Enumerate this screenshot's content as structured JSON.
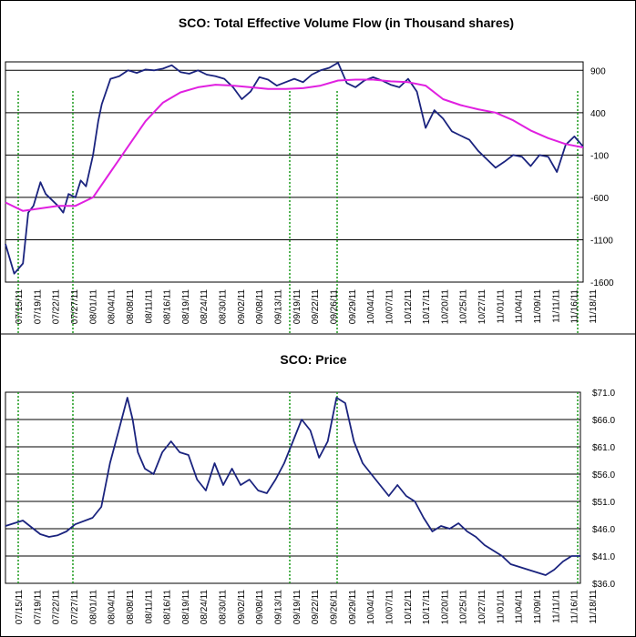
{
  "chart_data": [
    {
      "type": "line",
      "title": "SCO: Total Effective Volume Flow (in Thousand shares)",
      "xlabel": "",
      "ylabel": "",
      "ylim": [
        -1600,
        1000
      ],
      "yticks": [
        900,
        400,
        -100,
        -600,
        -1100,
        -1600
      ],
      "grid": "horizontal",
      "legend": "none",
      "x_tick_labels": [
        "07/15/11",
        "07/19/11",
        "07/22/11",
        "07/27/11",
        "08/01/11",
        "08/04/11",
        "08/08/11",
        "08/11/11",
        "08/16/11",
        "08/19/11",
        "08/24/11",
        "08/30/11",
        "09/02/11",
        "09/08/11",
        "09/13/11",
        "09/19/11",
        "09/22/11",
        "09/26/11",
        "09/29/11",
        "10/04/11",
        "10/07/11",
        "10/12/11",
        "10/17/11",
        "10/20/11",
        "10/25/11",
        "10/27/11",
        "11/01/11",
        "11/04/11",
        "11/09/11",
        "11/11/11",
        "11/16/11",
        "11/18/11"
      ],
      "series": [
        {
          "color": "#1a237e",
          "values": [
            [
              0,
              -1150
            ],
            [
              0.5,
              -1500
            ],
            [
              1,
              -1380
            ],
            [
              1.3,
              -780
            ],
            [
              1.6,
              -700
            ],
            [
              2,
              -420
            ],
            [
              2.3,
              -560
            ],
            [
              2.6,
              -620
            ],
            [
              3,
              -700
            ],
            [
              3.3,
              -780
            ],
            [
              3.6,
              -560
            ],
            [
              4,
              -600
            ],
            [
              4.3,
              -400
            ],
            [
              4.6,
              -470
            ],
            [
              5,
              -100
            ],
            [
              5.3,
              300
            ],
            [
              5.5,
              500
            ],
            [
              6,
              800
            ],
            [
              6.5,
              830
            ],
            [
              7,
              900
            ],
            [
              7.5,
              870
            ],
            [
              8,
              910
            ],
            [
              8.5,
              900
            ],
            [
              9,
              920
            ],
            [
              9.5,
              960
            ],
            [
              10,
              880
            ],
            [
              10.5,
              860
            ],
            [
              11,
              900
            ],
            [
              11.5,
              850
            ],
            [
              12,
              830
            ],
            [
              12.5,
              800
            ],
            [
              13,
              700
            ],
            [
              13.5,
              560
            ],
            [
              14,
              650
            ],
            [
              14.5,
              820
            ],
            [
              15,
              790
            ],
            [
              15.5,
              720
            ],
            [
              16,
              760
            ],
            [
              16.5,
              800
            ],
            [
              17,
              760
            ],
            [
              17.5,
              850
            ],
            [
              18,
              900
            ],
            [
              18.5,
              930
            ],
            [
              19,
              990
            ],
            [
              19.5,
              750
            ],
            [
              20,
              700
            ],
            [
              20.5,
              780
            ],
            [
              21,
              820
            ],
            [
              21.5,
              780
            ],
            [
              22,
              730
            ],
            [
              22.5,
              700
            ],
            [
              23,
              800
            ],
            [
              23.5,
              650
            ],
            [
              24,
              220
            ],
            [
              24.5,
              430
            ],
            [
              25,
              330
            ],
            [
              25.5,
              180
            ],
            [
              26,
              130
            ],
            [
              26.5,
              80
            ],
            [
              27,
              -50
            ],
            [
              27.5,
              -150
            ],
            [
              28,
              -250
            ],
            [
              28.5,
              -180
            ],
            [
              29,
              -100
            ],
            [
              29.5,
              -120
            ],
            [
              30,
              -230
            ],
            [
              30.5,
              -100
            ],
            [
              31,
              -120
            ],
            [
              31.5,
              -300
            ],
            [
              32,
              20
            ],
            [
              32.5,
              120
            ],
            [
              33,
              0
            ]
          ]
        },
        {
          "color": "#e020e0",
          "values": [
            [
              0,
              -660
            ],
            [
              1,
              -760
            ],
            [
              2,
              -730
            ],
            [
              3,
              -700
            ],
            [
              4,
              -700
            ],
            [
              5,
              -600
            ],
            [
              6,
              -300
            ],
            [
              7,
              0
            ],
            [
              8,
              300
            ],
            [
              9,
              520
            ],
            [
              10,
              640
            ],
            [
              11,
              700
            ],
            [
              12,
              730
            ],
            [
              13,
              720
            ],
            [
              14,
              700
            ],
            [
              15,
              680
            ],
            [
              16,
              680
            ],
            [
              17,
              690
            ],
            [
              18,
              720
            ],
            [
              19,
              780
            ],
            [
              20,
              790
            ],
            [
              21,
              790
            ],
            [
              22,
              770
            ],
            [
              23,
              760
            ],
            [
              24,
              720
            ],
            [
              25,
              560
            ],
            [
              26,
              490
            ],
            [
              27,
              440
            ],
            [
              28,
              400
            ],
            [
              29,
              310
            ],
            [
              30,
              190
            ],
            [
              31,
              100
            ],
            [
              32,
              30
            ],
            [
              33,
              -10
            ]
          ]
        }
      ]
    },
    {
      "type": "line",
      "title": "SCO: Price",
      "xlabel": "",
      "ylabel": "",
      "ylim": [
        36,
        71
      ],
      "yticks": [
        "$71.0",
        "$66.0",
        "$61.0",
        "$56.0",
        "$51.0",
        "$46.0",
        "$41.0",
        "$36.0"
      ],
      "grid": "horizontal",
      "legend": "none",
      "x_tick_labels": [
        "07/15/11",
        "07/19/11",
        "07/22/11",
        "07/27/11",
        "08/01/11",
        "08/04/11",
        "08/08/11",
        "08/11/11",
        "08/16/11",
        "08/19/11",
        "08/24/11",
        "08/30/11",
        "09/02/11",
        "09/08/11",
        "09/13/11",
        "09/19/11",
        "09/22/11",
        "09/26/11",
        "09/29/11",
        "10/04/11",
        "10/07/11",
        "10/12/11",
        "10/17/11",
        "10/20/11",
        "10/25/11",
        "10/27/11",
        "11/01/11",
        "11/04/11",
        "11/09/11",
        "11/11/11",
        "11/16/11",
        "11/18/11"
      ],
      "series": [
        {
          "color": "#1a237e",
          "values": [
            [
              0,
              46.5
            ],
            [
              1,
              47.5
            ],
            [
              2,
              45
            ],
            [
              2.5,
              44.5
            ],
            [
              3,
              44.8
            ],
            [
              3.5,
              45.5
            ],
            [
              4,
              46.8
            ],
            [
              5,
              48
            ],
            [
              5.5,
              50
            ],
            [
              6,
              58
            ],
            [
              6.5,
              64
            ],
            [
              7,
              70
            ],
            [
              7.3,
              66
            ],
            [
              7.6,
              60
            ],
            [
              8,
              57
            ],
            [
              8.5,
              56
            ],
            [
              9,
              60
            ],
            [
              9.5,
              62
            ],
            [
              10,
              60
            ],
            [
              10.5,
              59.5
            ],
            [
              11,
              55
            ],
            [
              11.5,
              53
            ],
            [
              12,
              58
            ],
            [
              12.5,
              54
            ],
            [
              13,
              57
            ],
            [
              13.5,
              54
            ],
            [
              14,
              55
            ],
            [
              14.5,
              53
            ],
            [
              15,
              52.5
            ],
            [
              15.5,
              55
            ],
            [
              16,
              58
            ],
            [
              16.5,
              62
            ],
            [
              17,
              66
            ],
            [
              17.5,
              64
            ],
            [
              18,
              59
            ],
            [
              18.5,
              62
            ],
            [
              19,
              70
            ],
            [
              19.5,
              69
            ],
            [
              20,
              62
            ],
            [
              20.5,
              58
            ],
            [
              21,
              56
            ],
            [
              21.5,
              54
            ],
            [
              22,
              52
            ],
            [
              22.5,
              54
            ],
            [
              23,
              52
            ],
            [
              23.5,
              51
            ],
            [
              24,
              48
            ],
            [
              24.5,
              45.5
            ],
            [
              25,
              46.5
            ],
            [
              25.5,
              46
            ],
            [
              26,
              47
            ],
            [
              26.5,
              45.5
            ],
            [
              27,
              44.5
            ],
            [
              27.5,
              43
            ],
            [
              28,
              42
            ],
            [
              28.5,
              41
            ],
            [
              29,
              39.5
            ],
            [
              29.5,
              39
            ],
            [
              30,
              38.5
            ],
            [
              30.5,
              38
            ],
            [
              31,
              37.5
            ],
            [
              31.5,
              38.5
            ],
            [
              32,
              40
            ],
            [
              32.5,
              41
            ],
            [
              33,
              41
            ]
          ]
        }
      ]
    }
  ]
}
